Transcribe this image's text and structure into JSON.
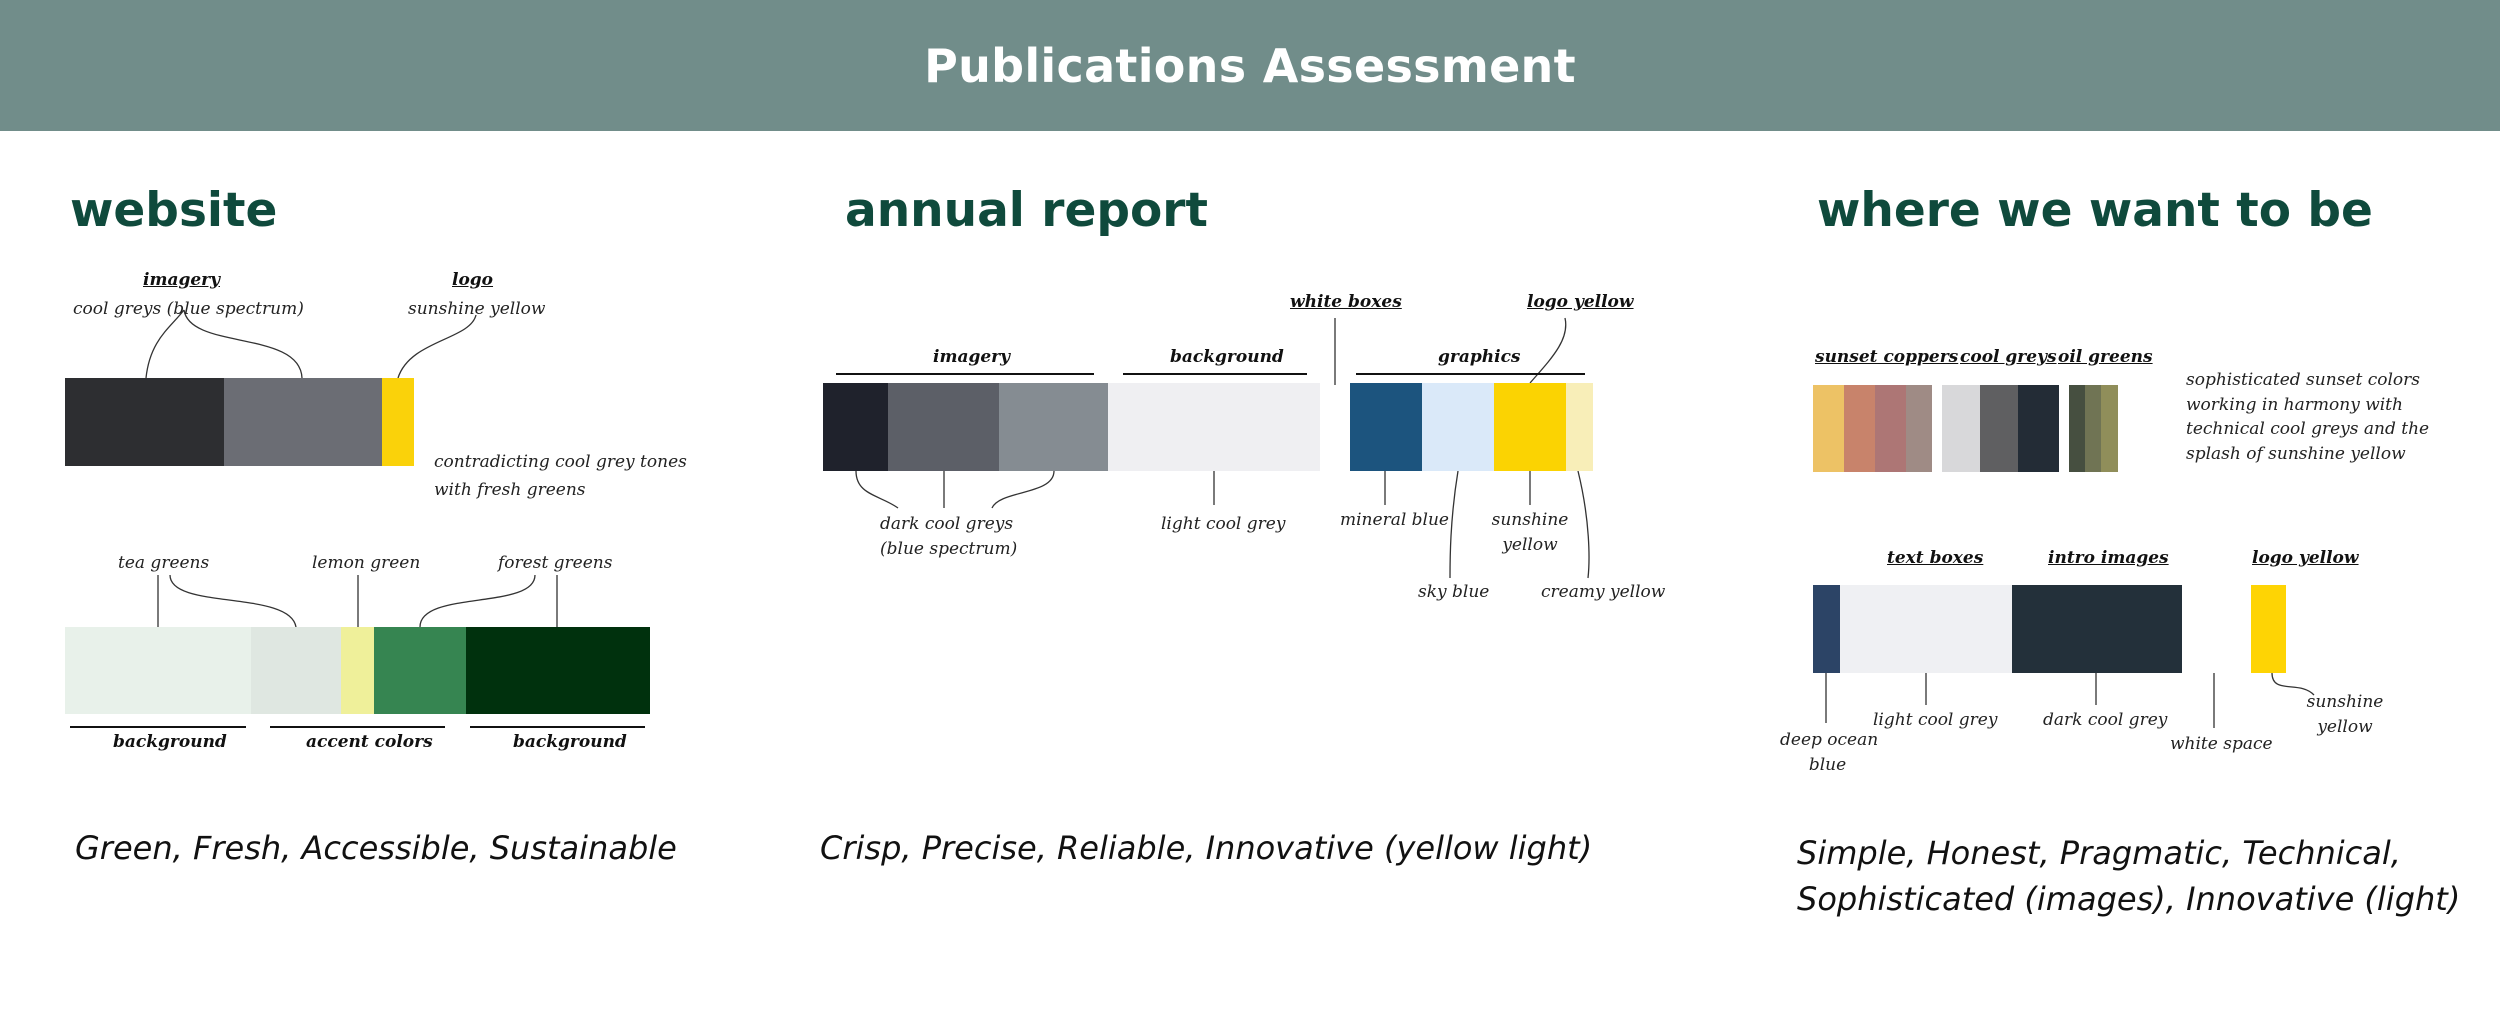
{
  "header": {
    "title": "Publications Assessment"
  },
  "website": {
    "title": "website",
    "imagery_heading": "imagery",
    "imagery_note": "cool greys (blue spectrum)",
    "logo_heading": "logo",
    "logo_note": "sunshine yellow",
    "side_note_line1": "contradicting cool grey tones",
    "side_note_line2": "with fresh greens",
    "tea_greens": "tea greens",
    "lemon_green": "lemon green",
    "forest_greens": "forest greens",
    "bracket_background_left": "background",
    "bracket_accent": "accent colors",
    "bracket_background_right": "background",
    "tagline": "Green, Fresh, Accessible, Sustainable",
    "top_colors": [
      "#2d2e31",
      "#6b6d74",
      "#fad20a"
    ],
    "bottom_colors": [
      "#e8f1ea",
      "#dfe7e1",
      "#eff09a",
      "#368551",
      "#00310d"
    ]
  },
  "annual_report": {
    "title": "annual report",
    "white_boxes": "white boxes",
    "logo_yellow": "logo yellow",
    "imagery": "imagery",
    "background": "background",
    "graphics": "graphics",
    "dark_cool_greys_line1": "dark cool greys",
    "dark_cool_greys_line2": "(blue spectrum)",
    "light_cool_grey": "light cool grey",
    "mineral_blue": "mineral blue",
    "sunshine_yellow_line1": "sunshine",
    "sunshine_yellow_line2": "yellow",
    "sky_blue": "sky blue",
    "creamy_yellow": "creamy yellow",
    "tagline": "Crisp, Precise, Reliable, Innovative (yellow light)",
    "colors": [
      "#1f222c",
      "#5c5f67",
      "#858c92",
      "#efeff2",
      "#1c547e",
      "#dae9f9",
      "#fbd302",
      "#f8eeb8"
    ]
  },
  "target": {
    "title": "where we want to be",
    "sunset_coppers": "sunset coppers",
    "cool_greys": "cool  greys",
    "oil_greens": "oil greens",
    "note_line1": "sophisticated sunset colors",
    "note_line2": "working in harmony with",
    "note_line3": "technical cool greys and the",
    "note_line4": "splash of sunshine yellow",
    "text_boxes": "text boxes",
    "intro_images": "intro images",
    "logo_yellow": "logo yellow",
    "deep_ocean_line1": "deep ocean",
    "deep_ocean_line2": "blue",
    "light_cool_grey": "light cool grey",
    "dark_cool_grey": "dark cool grey",
    "white_space": "white space",
    "sunshine_line1": "sunshine",
    "sunshine_line2": "yellow",
    "tagline_line1": "Simple, Honest, Pragmatic, Technical,",
    "tagline_line2": "Sophisticated (images), Innovative (light)",
    "palette_colors": [
      "#edc265",
      "#c8836b",
      "#ad7675",
      "#9f8b85",
      "#d8d8da",
      "#5f5f61",
      "#232c36",
      "#464f40",
      "#707454",
      "#908e5a"
    ],
    "bottom_colors": [
      "#2c4466",
      "#eff0f3",
      "#23303a",
      "#fed404"
    ]
  }
}
